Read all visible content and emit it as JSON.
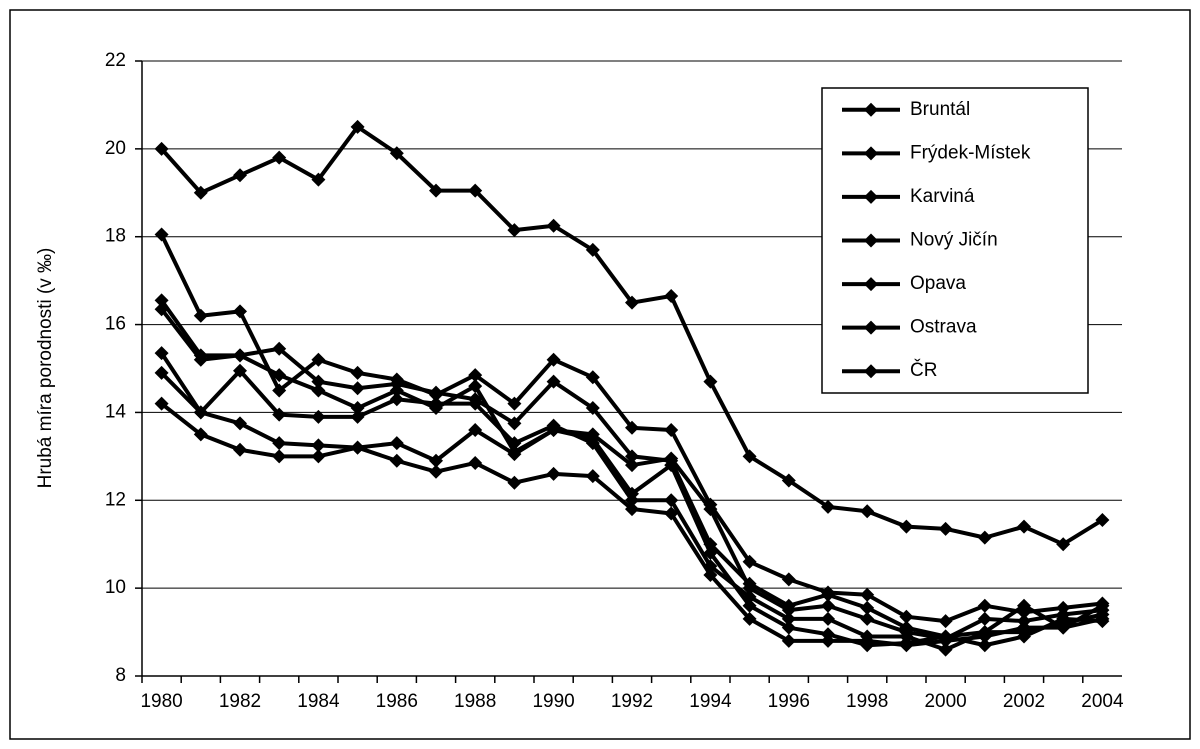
{
  "chart_data": {
    "type": "line",
    "y_label": "Hrubá míra porodnosti (v ‰)",
    "categories": [
      "1980",
      null,
      "1982",
      null,
      "1984",
      null,
      "1986",
      null,
      "1988",
      null,
      "1990",
      null,
      "1992",
      null,
      "1994",
      null,
      "1996",
      null,
      "1998",
      null,
      "2000",
      null,
      "2002",
      null,
      "2004"
    ],
    "ylim": [
      8,
      22
    ],
    "yticks": [
      8,
      10,
      12,
      14,
      16,
      18,
      20,
      22
    ],
    "grid": true,
    "legend": "upper right",
    "series": [
      {
        "name": "Bruntál",
        "color": "#000000",
        "values": [
          16.55,
          15.3,
          15.3,
          15.45,
          14.7,
          14.55,
          14.65,
          14.45,
          14.3,
          13.75,
          14.7,
          14.1,
          13.0,
          12.9,
          11.0,
          10.1,
          9.6,
          9.85,
          9.55,
          9.1,
          8.9,
          9.0,
          9.6,
          9.1,
          9.6
        ]
      },
      {
        "name": "Frýdek-Místek",
        "color": "#000000",
        "values": [
          16.35,
          15.2,
          15.3,
          14.85,
          14.5,
          14.1,
          14.5,
          14.1,
          14.6,
          13.1,
          13.6,
          13.5,
          12.8,
          12.95,
          11.8,
          10.0,
          9.5,
          9.6,
          9.3,
          9.0,
          8.85,
          9.3,
          9.25,
          9.4,
          9.5
        ]
      },
      {
        "name": "Karviná",
        "color": "#000000",
        "values": [
          20.0,
          19.0,
          19.4,
          19.8,
          19.3,
          20.5,
          19.9,
          19.05,
          19.05,
          18.15,
          18.25,
          17.7,
          16.5,
          16.65,
          14.7,
          13.0,
          12.45,
          11.85,
          11.75,
          11.4,
          11.35,
          11.15,
          11.4,
          11.0,
          11.55
        ]
      },
      {
        "name": "Nový Jičín",
        "color": "#000000",
        "values": [
          15.35,
          14.0,
          14.95,
          13.95,
          13.9,
          13.9,
          14.3,
          14.2,
          14.2,
          13.3,
          13.7,
          13.3,
          12.0,
          12.0,
          10.5,
          9.8,
          9.3,
          9.3,
          8.9,
          8.9,
          8.6,
          9.0,
          9.0,
          9.2,
          9.4
        ]
      },
      {
        "name": "Opava",
        "color": "#000000",
        "values": [
          14.9,
          14.0,
          13.75,
          13.3,
          13.25,
          13.2,
          13.3,
          12.9,
          13.6,
          13.05,
          13.6,
          13.4,
          12.15,
          12.8,
          10.8,
          9.6,
          9.1,
          8.95,
          8.7,
          8.75,
          8.9,
          8.7,
          8.9,
          9.3,
          9.25
        ]
      },
      {
        "name": "Ostrava",
        "color": "#000000",
        "values": [
          18.05,
          16.2,
          16.3,
          14.5,
          15.2,
          14.9,
          14.75,
          14.4,
          14.85,
          14.2,
          15.2,
          14.8,
          13.65,
          13.6,
          11.9,
          10.6,
          10.2,
          9.9,
          9.85,
          9.35,
          9.25,
          9.6,
          9.45,
          9.55,
          9.65
        ]
      },
      {
        "name": "ČR",
        "color": "#000000",
        "values": [
          14.2,
          13.5,
          13.15,
          13.0,
          13.0,
          13.2,
          12.9,
          12.65,
          12.85,
          12.4,
          12.6,
          12.55,
          11.8,
          11.7,
          10.3,
          9.3,
          8.8,
          8.8,
          8.8,
          8.7,
          8.8,
          8.9,
          9.1,
          9.1,
          9.3
        ]
      }
    ]
  }
}
